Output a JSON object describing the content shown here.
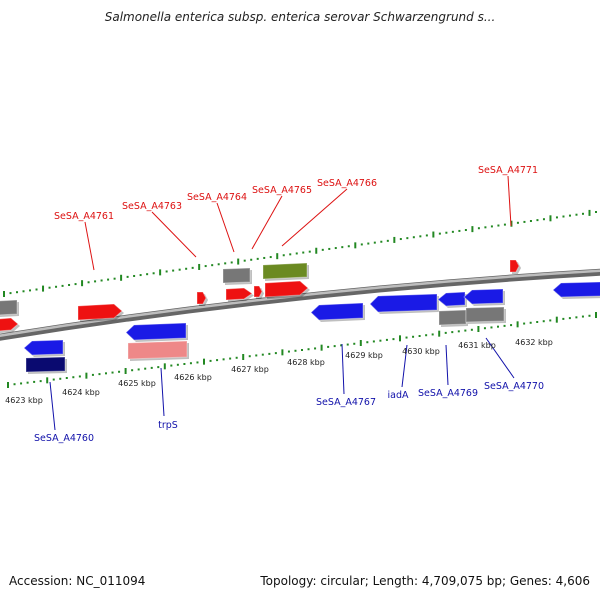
{
  "title": "Salmonella enterica subsp. enterica serovar Schwarzengrund s...",
  "footer": {
    "accession": "Accession: NC_011094",
    "summary": "Topology: circular; Length: 4,709,075 bp; Genes: 4,606"
  },
  "colors": {
    "forward_gene": "#ee1111",
    "reverse_gene": "#1a1ae6",
    "reverse_gene_dark": "#0a0a70",
    "pseudo_light": "#ee8888",
    "rna_olive": "#6b8a22",
    "other_gray": "#777777",
    "tick_green": "#228822",
    "backbone": "#888888",
    "forward_label": "#dd1111",
    "reverse_label": "#1111aa"
  },
  "tick_labels": [
    "4623 kbp",
    "4624 kbp",
    "4625 kbp",
    "4626 kbp",
    "4627 kbp",
    "4628 kbp",
    "4629 kbp",
    "4630 kbp",
    "4631 kbp",
    "4632 kbp"
  ],
  "forward_labels": [
    "SeSA_A4761",
    "SeSA_A4763",
    "SeSA_A4764",
    "SeSA_A4765",
    "SeSA_A4766",
    "SeSA_A4771"
  ],
  "reverse_labels": [
    "SeSA_A4760",
    "trpS",
    "SeSA_A4767",
    "iadA",
    "SeSA_A4769",
    "SeSA_A4770"
  ]
}
